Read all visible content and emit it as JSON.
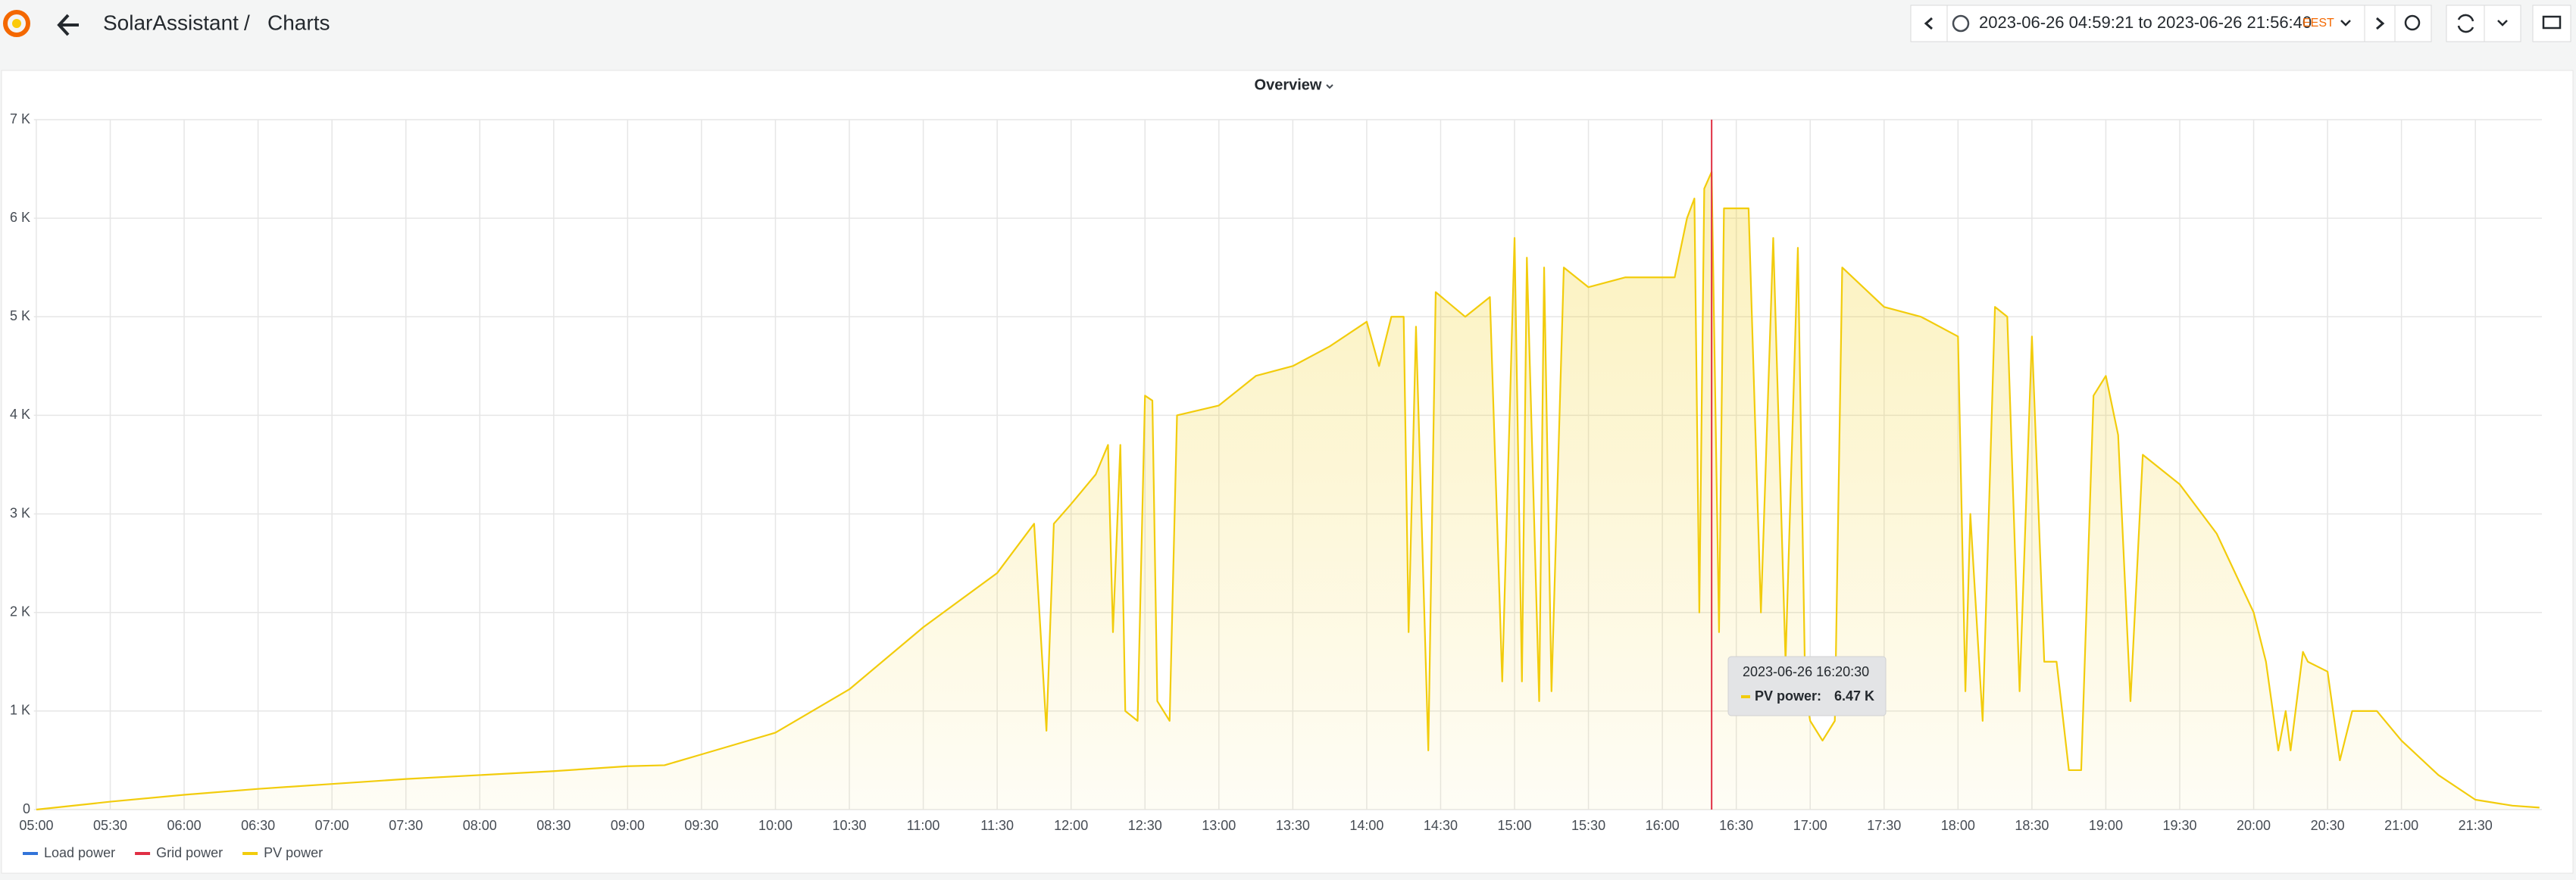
{
  "header": {
    "app": "SolarAssistant",
    "separator": "/",
    "page": "Charts"
  },
  "time_picker": {
    "range": "2023-06-26 04:59:21 to 2023-06-26 21:56:40",
    "zone": "EEST"
  },
  "chart_data": {
    "type": "line",
    "title": "Overview",
    "x": [
      "05:00",
      "05:30",
      "06:00",
      "06:30",
      "07:00",
      "07:30",
      "08:00",
      "08:30",
      "09:00",
      "09:15",
      "09:30",
      "10:00",
      "10:30",
      "11:00",
      "11:30",
      "11:45",
      "11:50",
      "11:53",
      "12:00",
      "12:10",
      "12:15",
      "12:17",
      "12:20",
      "12:22",
      "12:27",
      "12:30",
      "12:33",
      "12:35",
      "12:40",
      "12:43",
      "13:00",
      "13:15",
      "13:30",
      "13:45",
      "14:00",
      "14:05",
      "14:10",
      "14:15",
      "14:17",
      "14:20",
      "14:25",
      "14:28",
      "14:40",
      "14:50",
      "14:55",
      "15:00",
      "15:03",
      "15:05",
      "15:10",
      "15:12",
      "15:15",
      "15:20",
      "15:30",
      "15:45",
      "16:00",
      "16:05",
      "16:10",
      "16:13",
      "16:15",
      "16:17",
      "16:20",
      "16:23",
      "16:25",
      "16:35",
      "16:40",
      "16:45",
      "16:50",
      "16:55",
      "16:58",
      "17:00",
      "17:05",
      "17:10",
      "17:13",
      "17:30",
      "17:45",
      "18:00",
      "18:03",
      "18:05",
      "18:10",
      "18:15",
      "18:20",
      "18:25",
      "18:30",
      "18:35",
      "18:40",
      "18:45",
      "18:50",
      "18:55",
      "19:00",
      "19:05",
      "19:10",
      "19:15",
      "19:30",
      "19:45",
      "20:00",
      "20:05",
      "20:10",
      "20:13",
      "20:15",
      "20:20",
      "20:22",
      "20:30",
      "20:35",
      "20:40",
      "20:50",
      "21:00",
      "21:15",
      "21:30",
      "21:45",
      "21:56"
    ],
    "series": [
      {
        "name": "PV power",
        "color": "#f2cc0c",
        "values": [
          0,
          80,
          150,
          210,
          260,
          310,
          350,
          390,
          440,
          450,
          560,
          780,
          1220,
          1850,
          2400,
          2900,
          800,
          2900,
          3100,
          3400,
          3700,
          1800,
          3700,
          1000,
          900,
          4200,
          4150,
          1100,
          900,
          4000,
          4100,
          4400,
          4500,
          4700,
          4950,
          4500,
          5000,
          5000,
          1800,
          4900,
          600,
          5250,
          5000,
          5200,
          1300,
          5800,
          1300,
          5600,
          1100,
          5500,
          1200,
          5500,
          5300,
          5400,
          5400,
          5400,
          6000,
          6200,
          2000,
          6300,
          6470,
          1800,
          6100,
          6100,
          2000,
          5800,
          1500,
          5700,
          1200,
          900,
          700,
          900,
          5500,
          5100,
          5000,
          4800,
          1200,
          3000,
          900,
          5100,
          5000,
          1200,
          4800,
          1500,
          1500,
          400,
          400,
          4200,
          4400,
          3800,
          1100,
          3600,
          3300,
          2800,
          2000,
          1500,
          600,
          1000,
          600,
          1600,
          1500,
          1400,
          500,
          1000,
          1000,
          700,
          350,
          100,
          40,
          20
        ]
      }
    ],
    "legend": [
      {
        "name": "Load power",
        "color": "#3274d9"
      },
      {
        "name": "Grid power",
        "color": "#e02f44"
      },
      {
        "name": "PV power",
        "color": "#f2cc0c"
      }
    ],
    "xlim": [
      "04:59",
      "21:57"
    ],
    "xticks": [
      "05:00",
      "05:30",
      "06:00",
      "06:30",
      "07:00",
      "07:30",
      "08:00",
      "08:30",
      "09:00",
      "09:30",
      "10:00",
      "10:30",
      "11:00",
      "11:30",
      "12:00",
      "12:30",
      "13:00",
      "13:30",
      "14:00",
      "14:30",
      "15:00",
      "15:30",
      "16:00",
      "16:30",
      "17:00",
      "17:30",
      "18:00",
      "18:30",
      "19:00",
      "19:30",
      "20:00",
      "20:30",
      "21:00",
      "21:30"
    ],
    "ylim": [
      0,
      7000
    ],
    "yticks": [
      0,
      {
        "value": 1000,
        "label": "1 K"
      },
      {
        "value": 2000,
        "label": "2 K"
      },
      {
        "value": 3000,
        "label": "3 K"
      },
      {
        "value": 4000,
        "label": "4 K"
      },
      {
        "value": 5000,
        "label": "5 K"
      },
      {
        "value": 6000,
        "label": "6 K"
      },
      {
        "value": 7000,
        "label": "7 K"
      }
    ],
    "grid": true,
    "tooltip": {
      "time": "2023-06-26 16:20:30",
      "series": "PV power:",
      "value": 6470,
      "value_label": "6.47 K",
      "cursor_x": "16:20",
      "cursor_color": "#e02f44"
    }
  }
}
